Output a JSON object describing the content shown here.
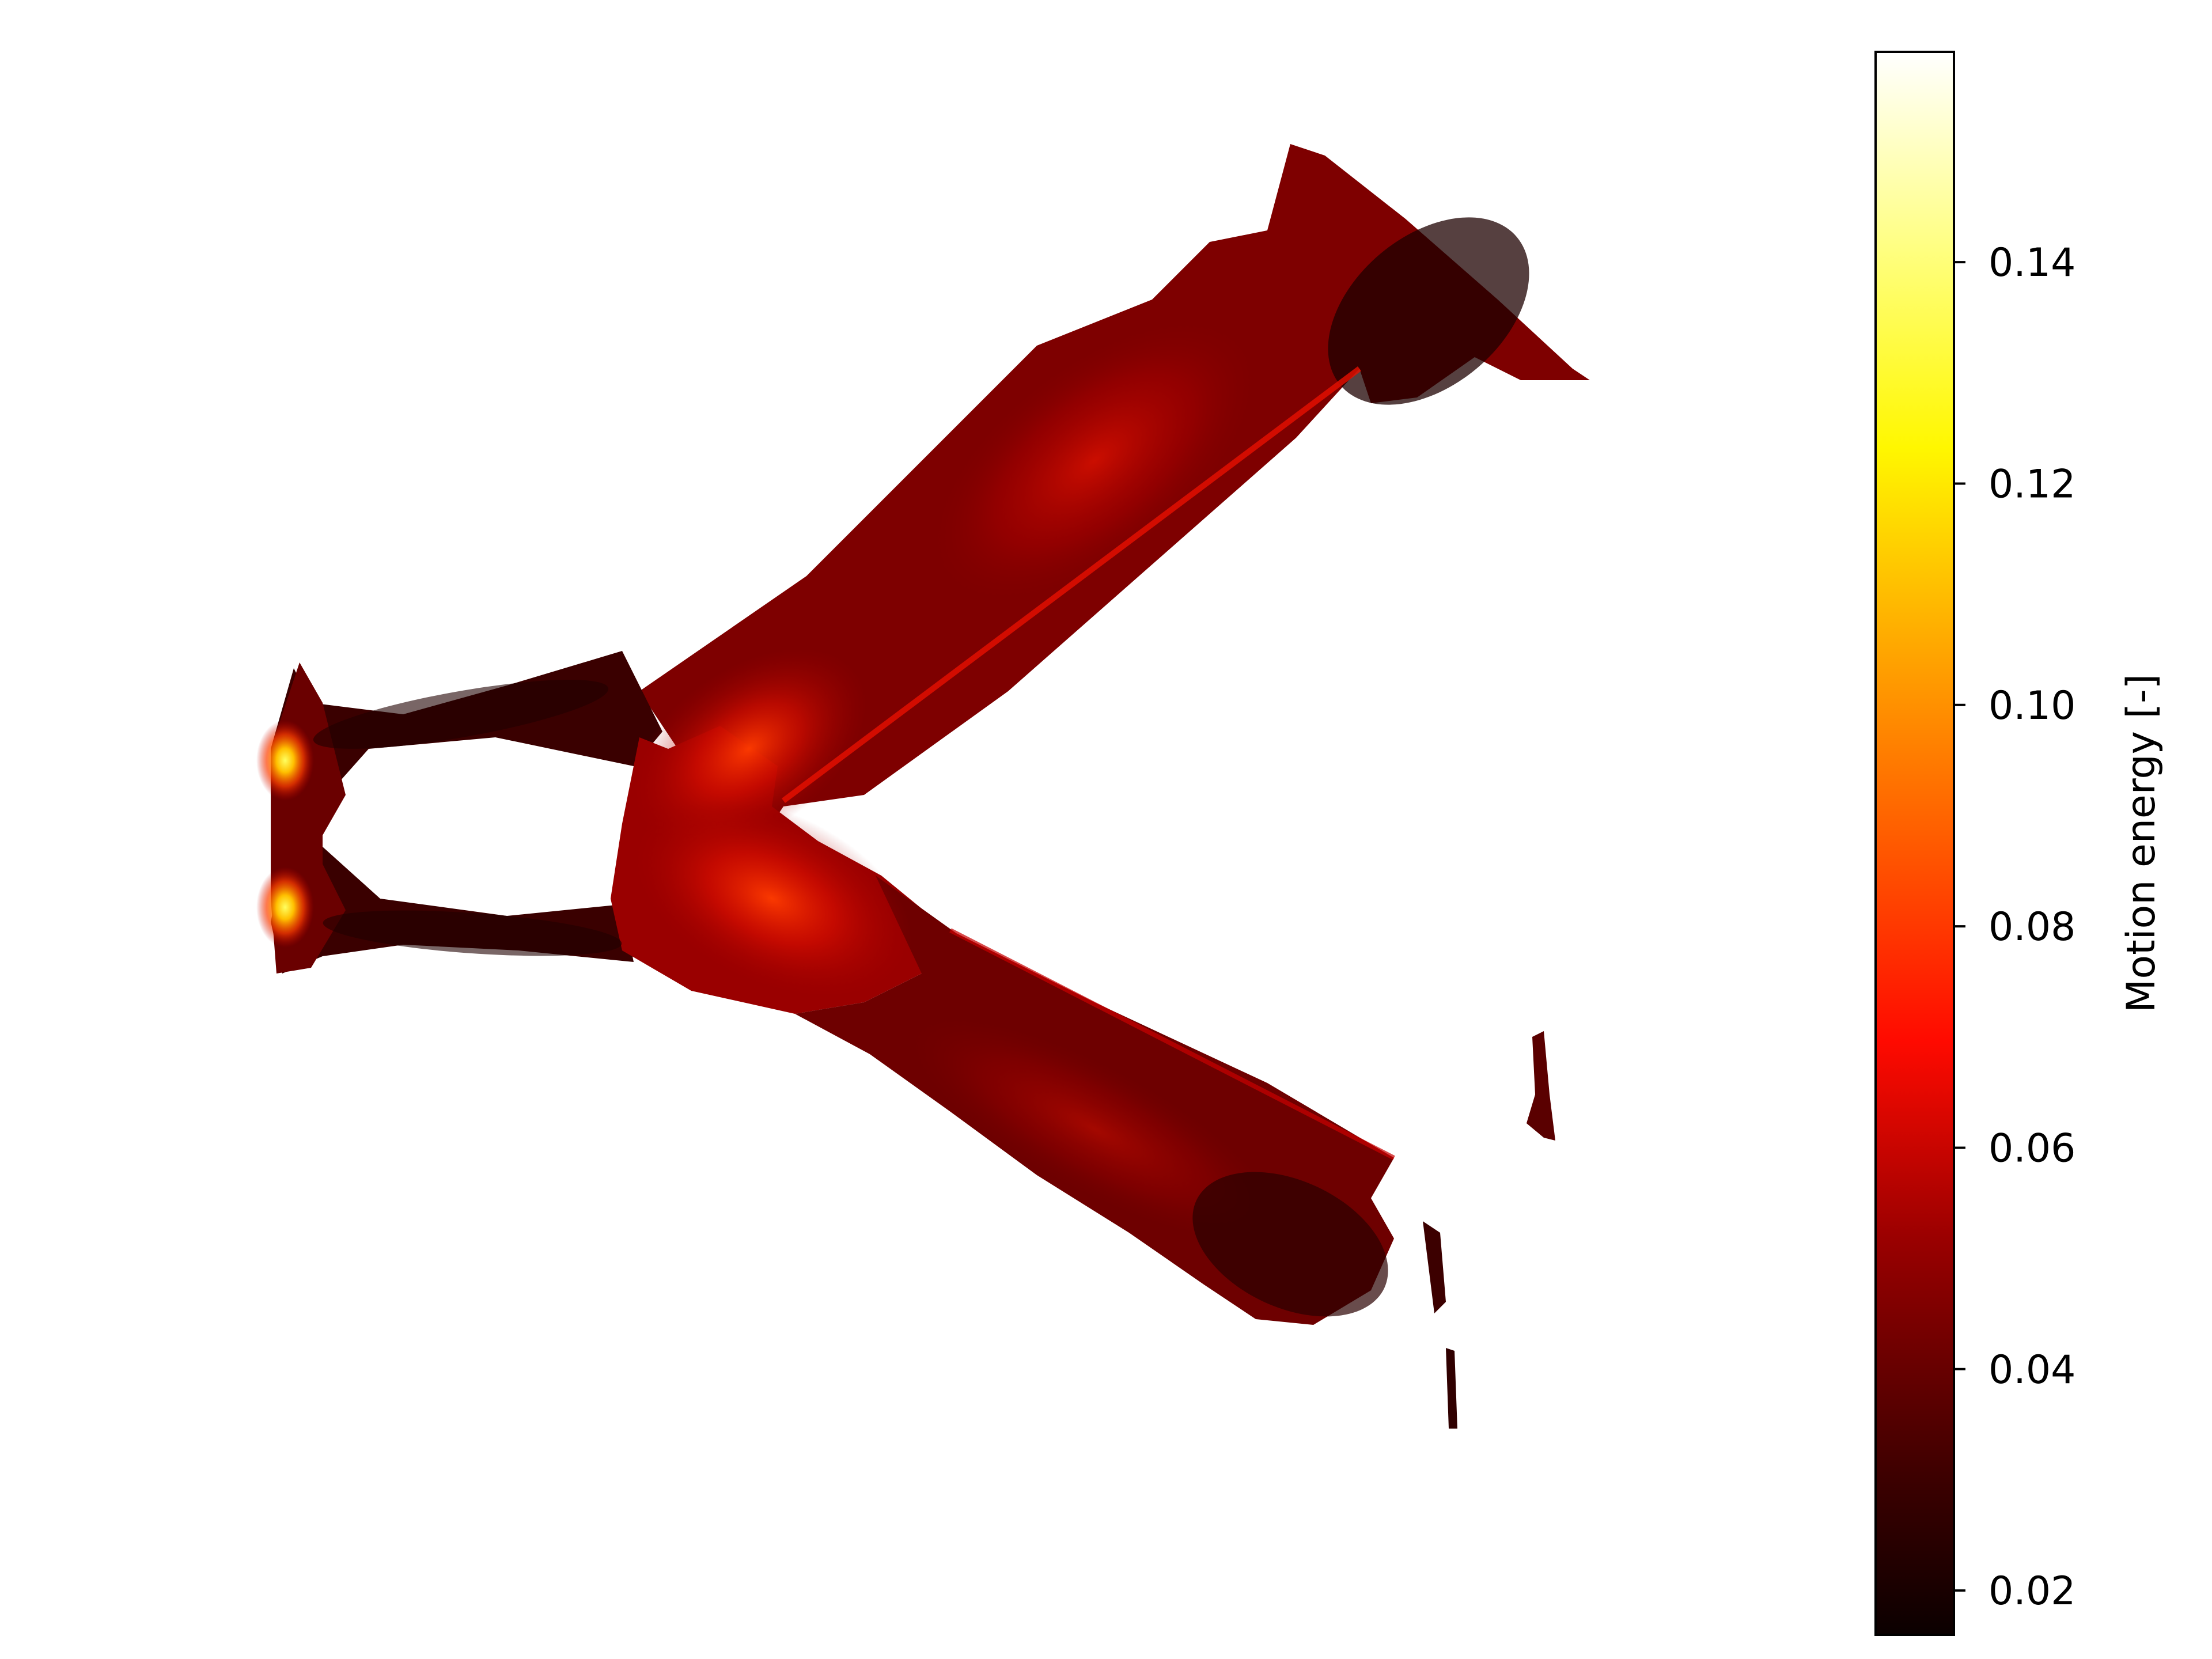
{
  "chart_data": {
    "type": "heatmap",
    "title": "",
    "xlabel": "",
    "ylabel": "",
    "axes_visible": false,
    "colormap": "hot",
    "colorbar": {
      "label": "Motion energy [-]",
      "range": [
        0.016,
        0.159
      ],
      "ticks": [
        0.02,
        0.04,
        0.06,
        0.08,
        0.1,
        0.12,
        0.14
      ],
      "tick_labels": [
        "0.02",
        "0.04",
        "0.06",
        "0.08",
        "0.10",
        "0.12",
        "0.14"
      ],
      "position": "right"
    },
    "description_values": {
      "background_value": "masked",
      "peak_value": 0.12,
      "typical_branch_value": 0.05
    }
  }
}
